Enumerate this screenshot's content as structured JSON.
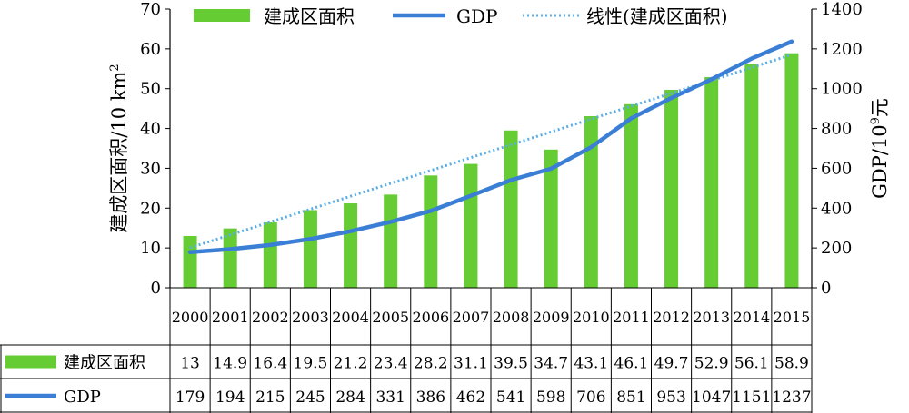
{
  "chart_data": {
    "type": "bar",
    "categories": [
      "2000",
      "2001",
      "2002",
      "2003",
      "2004",
      "2005",
      "2006",
      "2007",
      "2008",
      "2009",
      "2010",
      "2011",
      "2012",
      "2013",
      "2014",
      "2015"
    ],
    "series": [
      {
        "name": "建成区面积",
        "type": "bar",
        "axis": "left",
        "color": "#66cc33",
        "values": [
          13,
          14.9,
          16.4,
          19.5,
          21.2,
          23.4,
          28.2,
          31.1,
          39.5,
          34.7,
          43.1,
          46.1,
          49.7,
          52.9,
          56.1,
          58.9
        ]
      },
      {
        "name": "GDP",
        "type": "line",
        "axis": "right",
        "color": "#3a7fd5",
        "values": [
          179,
          194,
          215,
          245,
          284,
          331,
          386,
          462,
          541,
          598,
          706,
          851,
          953,
          1047,
          1151,
          1237
        ]
      },
      {
        "name": "线性(建成区面积)",
        "type": "trendline",
        "axis": "left",
        "color": "#5aaee6",
        "of": "建成区面积"
      }
    ],
    "y_left": {
      "label_main": "建成区面积/10 km",
      "label_sup": "2",
      "ylim": [
        0,
        70
      ],
      "ticks": [
        "0",
        "10",
        "20",
        "30",
        "40",
        "50",
        "60",
        "70"
      ]
    },
    "y_right": {
      "label_main": "GDP/10",
      "label_sup": "9",
      "label_tail": "元",
      "ylim": [
        0,
        1400
      ],
      "ticks": [
        "0",
        "200",
        "400",
        "600",
        "800",
        "1000",
        "1200",
        "1400"
      ]
    },
    "legend": {
      "position": "top",
      "items": [
        "建成区面积",
        "GDP",
        "线性(建成区面积)"
      ]
    },
    "data_table": {
      "rows": [
        {
          "label": "建成区面积",
          "values": [
            "13",
            "14.9",
            "16.4",
            "19.5",
            "21.2",
            "23.4",
            "28.2",
            "31.1",
            "39.5",
            "34.7",
            "43.1",
            "46.1",
            "49.7",
            "52.9",
            "56.1",
            "58.9"
          ]
        },
        {
          "label": "GDP",
          "values": [
            "179",
            "194",
            "215",
            "245",
            "284",
            "331",
            "386",
            "462",
            "541",
            "598",
            "706",
            "851",
            "953",
            "1047",
            "1151",
            "1237"
          ]
        }
      ]
    },
    "grid": false
  }
}
